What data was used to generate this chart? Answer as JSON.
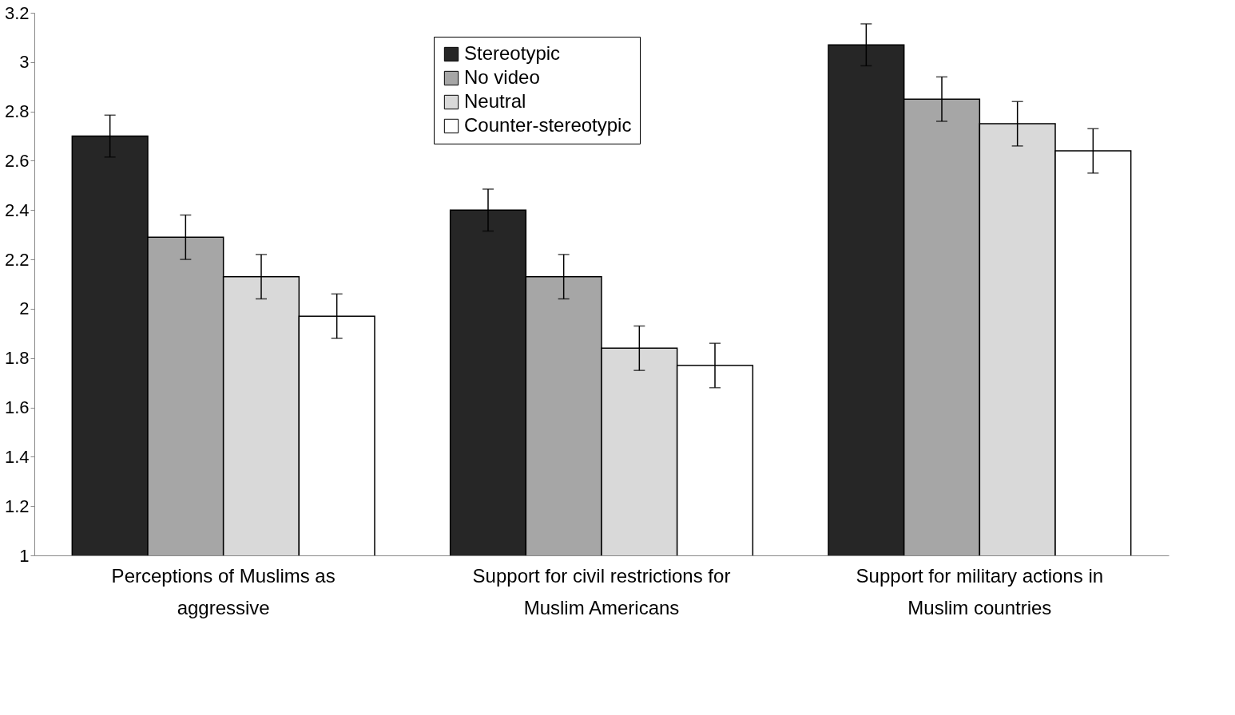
{
  "chart_data": {
    "type": "bar",
    "categories": [
      "Perceptions of Muslims as aggressive",
      "Support for civil restrictions for Muslim Americans",
      "Support for military actions in Muslim countries"
    ],
    "series": [
      {
        "name": "Stereotypic",
        "color": "#262626",
        "values": [
          2.7,
          2.4,
          3.07
        ],
        "errors": [
          0.085,
          0.085,
          0.085
        ]
      },
      {
        "name": "No video",
        "color": "#a6a6a6",
        "values": [
          2.29,
          2.13,
          2.85
        ],
        "errors": [
          0.09,
          0.09,
          0.09
        ]
      },
      {
        "name": "Neutral",
        "color": "#d9d9d9",
        "values": [
          2.13,
          1.84,
          2.75
        ],
        "errors": [
          0.09,
          0.09,
          0.09
        ]
      },
      {
        "name": "Counter-stereotypic",
        "color": "#ffffff",
        "values": [
          1.97,
          1.77,
          2.64
        ],
        "errors": [
          0.09,
          0.09,
          0.09
        ]
      }
    ],
    "ylim": [
      1,
      3.2
    ],
    "yticks": [
      1,
      1.2,
      1.4,
      1.6,
      1.8,
      2,
      2.2,
      2.4,
      2.6,
      2.8,
      3,
      3.2
    ],
    "grid": false,
    "legend": "top"
  }
}
